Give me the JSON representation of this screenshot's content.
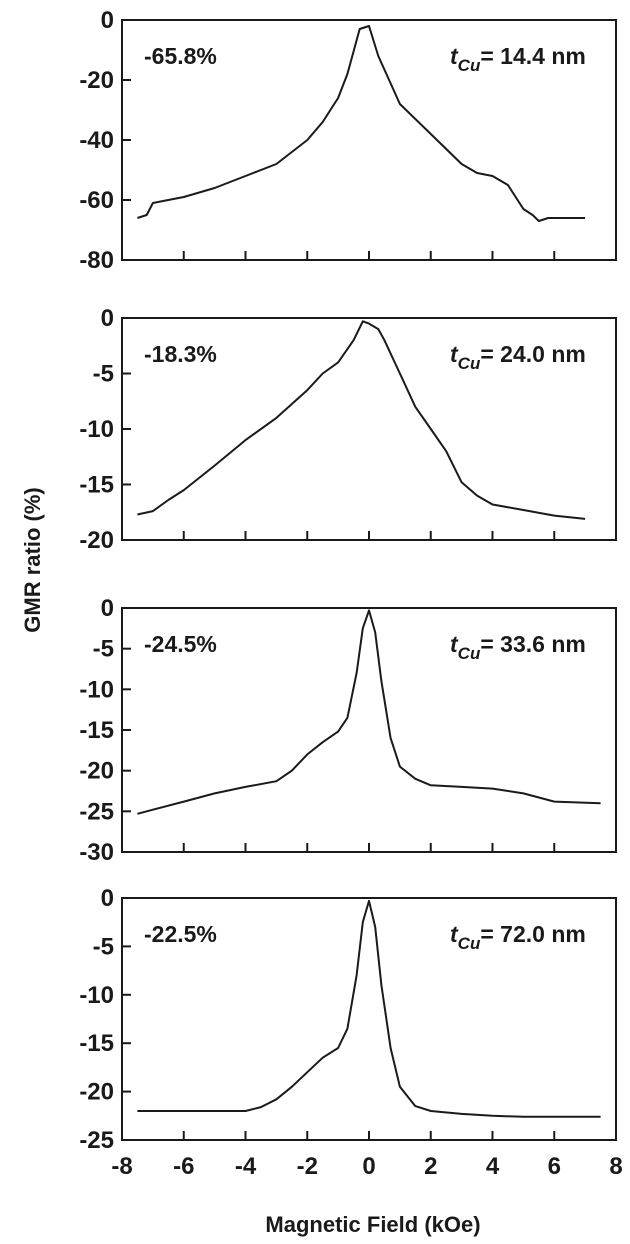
{
  "ylabel": "GMR ratio (%)",
  "xlabel": "Magnetic Field (kOe)",
  "chart_data": [
    {
      "type": "line",
      "xlim": [
        -8,
        8
      ],
      "ylim": [
        -80,
        0
      ],
      "yticks": [
        0,
        -20,
        -40,
        -60,
        -80
      ],
      "xticks": [
        -8,
        -6,
        -4,
        -2,
        0,
        2,
        4,
        6,
        8
      ],
      "show_xtick_labels": false,
      "annotation_left": "-65.8%",
      "annotation_right": "= 14.4 nm",
      "series": [
        {
          "x": [
            -7.5,
            -7.2,
            -7.0,
            -6.5,
            -6.0,
            -5.0,
            -4.0,
            -3.0,
            -2.0,
            -1.5,
            -1.0,
            -0.7,
            -0.3,
            0.0,
            0.3,
            1.0,
            2.0,
            3.0,
            3.5,
            4.0,
            4.5,
            5.0,
            5.3,
            5.5,
            5.8,
            6.0,
            7.0
          ],
          "y": [
            -66,
            -65,
            -61,
            -60,
            -59,
            -56,
            -52,
            -48,
            -40,
            -34,
            -26,
            -18,
            -3,
            -2,
            -12,
            -28,
            -38,
            -48,
            -51,
            -52,
            -55,
            -63,
            -65,
            -67,
            -66,
            -66,
            -66
          ]
        }
      ]
    },
    {
      "type": "line",
      "xlim": [
        -8,
        8
      ],
      "ylim": [
        -20,
        0
      ],
      "yticks": [
        0,
        -5,
        -10,
        -15,
        -20
      ],
      "xticks": [
        -8,
        -6,
        -4,
        -2,
        0,
        2,
        4,
        6,
        8
      ],
      "show_xtick_labels": false,
      "annotation_left": "-18.3%",
      "annotation_right": "= 24.0 nm",
      "series": [
        {
          "x": [
            -7.5,
            -7.0,
            -6.5,
            -6.0,
            -5.0,
            -4.0,
            -3.0,
            -2.0,
            -1.5,
            -1.0,
            -0.5,
            -0.2,
            0.0,
            0.3,
            0.5,
            1.0,
            1.5,
            2.0,
            2.5,
            3.0,
            3.5,
            4.0,
            5.0,
            6.0,
            7.0
          ],
          "y": [
            -17.7,
            -17.4,
            -16.4,
            -15.5,
            -13.3,
            -11.0,
            -9.0,
            -6.5,
            -5.0,
            -4.0,
            -2.0,
            -0.3,
            -0.5,
            -1.0,
            -2.0,
            -5.0,
            -8.0,
            -10.0,
            -12.0,
            -14.8,
            -16.0,
            -16.8,
            -17.3,
            -17.8,
            -18.1
          ]
        }
      ]
    },
    {
      "type": "line",
      "xlim": [
        -8,
        8
      ],
      "ylim": [
        -30,
        0
      ],
      "yticks": [
        0,
        -5,
        -10,
        -15,
        -20,
        -25,
        -30
      ],
      "xticks": [
        -8,
        -6,
        -4,
        -2,
        0,
        2,
        4,
        6,
        8
      ],
      "show_xtick_labels": false,
      "annotation_left": "-24.5%",
      "annotation_right": "= 33.6 nm",
      "series": [
        {
          "x": [
            -7.5,
            -7.0,
            -6.0,
            -5.0,
            -4.0,
            -3.0,
            -2.5,
            -2.0,
            -1.5,
            -1.0,
            -0.7,
            -0.4,
            -0.2,
            0.0,
            0.2,
            0.4,
            0.7,
            1.0,
            1.5,
            2.0,
            3.0,
            4.0,
            5.0,
            6.0,
            7.5
          ],
          "y": [
            -25.3,
            -24.8,
            -23.8,
            -22.8,
            -22.0,
            -21.3,
            -20.0,
            -18.0,
            -16.5,
            -15.2,
            -13.5,
            -8.0,
            -2.5,
            -0.3,
            -3.0,
            -9.0,
            -16.0,
            -19.5,
            -21.0,
            -21.8,
            -22.0,
            -22.2,
            -22.8,
            -23.8,
            -24.0
          ]
        }
      ]
    },
    {
      "type": "line",
      "xlim": [
        -8,
        8
      ],
      "ylim": [
        -25,
        0
      ],
      "yticks": [
        0,
        -5,
        -10,
        -15,
        -20,
        -25
      ],
      "xticks": [
        -8,
        -6,
        -4,
        -2,
        0,
        2,
        4,
        6,
        8
      ],
      "show_xtick_labels": true,
      "annotation_left": "-22.5%",
      "annotation_right": "= 72.0 nm",
      "series": [
        {
          "x": [
            -7.5,
            -6.0,
            -5.0,
            -4.0,
            -3.5,
            -3.0,
            -2.5,
            -2.0,
            -1.5,
            -1.0,
            -0.7,
            -0.4,
            -0.2,
            0.0,
            0.2,
            0.4,
            0.7,
            1.0,
            1.5,
            2.0,
            3.0,
            4.0,
            5.0,
            6.0,
            7.5
          ],
          "y": [
            -22.0,
            -22.0,
            -22.0,
            -22.0,
            -21.6,
            -20.8,
            -19.5,
            -18.0,
            -16.5,
            -15.5,
            -13.5,
            -8.0,
            -2.5,
            -0.3,
            -3.0,
            -9.0,
            -15.5,
            -19.5,
            -21.5,
            -22.0,
            -22.3,
            -22.5,
            -22.6,
            -22.6,
            -22.6
          ]
        }
      ]
    }
  ],
  "subscript": "Cu",
  "italic_t": "t"
}
